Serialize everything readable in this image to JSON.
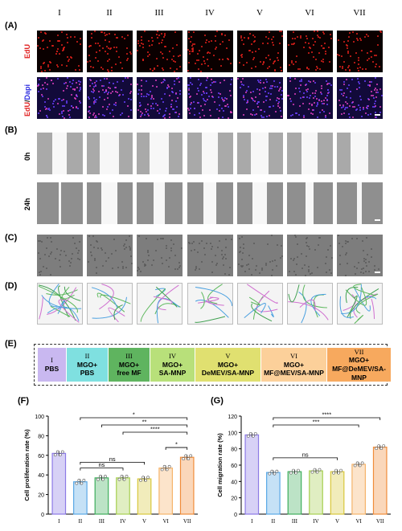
{
  "groups": [
    "I",
    "II",
    "III",
    "IV",
    "V",
    "VI",
    "VII"
  ],
  "panel_labels": {
    "a": "(A)",
    "b": "(B)",
    "c": "(C)",
    "d": "(D)",
    "e": "(E)",
    "f": "(F)",
    "g": "(G)"
  },
  "row_labels": {
    "edu": "EdU",
    "edu_dapi_1": "EdU",
    "edu_dapi_sep": "/",
    "edu_dapi_2": "Dapi",
    "t0": "0h",
    "t24": "24h"
  },
  "treatments": [
    {
      "num": "I",
      "lines": [
        "PBS"
      ],
      "color": "#c9b8f0"
    },
    {
      "num": "II",
      "lines": [
        "MGO+",
        "PBS"
      ],
      "color": "#7fe0e0"
    },
    {
      "num": "III",
      "lines": [
        "MGO+",
        "free MF"
      ],
      "color": "#5fb45f"
    },
    {
      "num": "IV",
      "lines": [
        "MGO+",
        "SA-MNP"
      ],
      "color": "#b8e07a"
    },
    {
      "num": "V",
      "lines": [
        "MGO+",
        "DeMEV/SA-MNP"
      ],
      "color": "#e0e070"
    },
    {
      "num": "VI",
      "lines": [
        "MGO+",
        "MF@MEV/SA-MNP"
      ],
      "color": "#fcd09a"
    },
    {
      "num": "VII",
      "lines": [
        "MGO+",
        "MF@DeMEV/SA-MNP"
      ],
      "color": "#f7a95e"
    }
  ],
  "chart_data": [
    {
      "type": "bar",
      "categories": [
        "I",
        "II",
        "III",
        "IV",
        "V",
        "VI",
        "VII"
      ],
      "values": [
        62,
        33,
        37,
        37,
        36,
        47,
        58
      ],
      "ylabel": "Cell proliferation rate (%)",
      "ylim": [
        0,
        100
      ],
      "yticks": [
        "0",
        "20",
        "40",
        "60",
        "80",
        "100"
      ],
      "colors": [
        "#8c7ae6",
        "#5aa8e6",
        "#3fae5c",
        "#a6cf4f",
        "#d8c83c",
        "#f5b36a",
        "#f08c3a"
      ],
      "significance": [
        {
          "from": "II",
          "to": "VII",
          "label": "*"
        },
        {
          "from": "III",
          "to": "VII",
          "label": "**"
        },
        {
          "from": "IV",
          "to": "VII",
          "label": "****"
        },
        {
          "from": "VI",
          "to": "VII",
          "label": "*"
        },
        {
          "from": "II",
          "to": "V",
          "label": "ns"
        },
        {
          "from": "II",
          "to": "IV",
          "label": "ns"
        }
      ]
    },
    {
      "type": "bar",
      "categories": [
        "I",
        "II",
        "III",
        "IV",
        "V",
        "VI",
        "VII"
      ],
      "values": [
        97,
        51,
        52,
        53,
        52,
        61,
        82
      ],
      "ylabel": "Cell migration rate (%)",
      "ylim": [
        0,
        120
      ],
      "yticks": [
        "0",
        "20",
        "40",
        "60",
        "80",
        "100",
        "120"
      ],
      "colors": [
        "#8c7ae6",
        "#5aa8e6",
        "#3fae5c",
        "#a6cf4f",
        "#d8c83c",
        "#f5b36a",
        "#f08c3a"
      ],
      "significance": [
        {
          "from": "II",
          "to": "VII",
          "label": "****"
        },
        {
          "from": "II",
          "to": "VI",
          "label": "***"
        },
        {
          "from": "II",
          "to": "V",
          "label": "ns"
        }
      ]
    }
  ]
}
